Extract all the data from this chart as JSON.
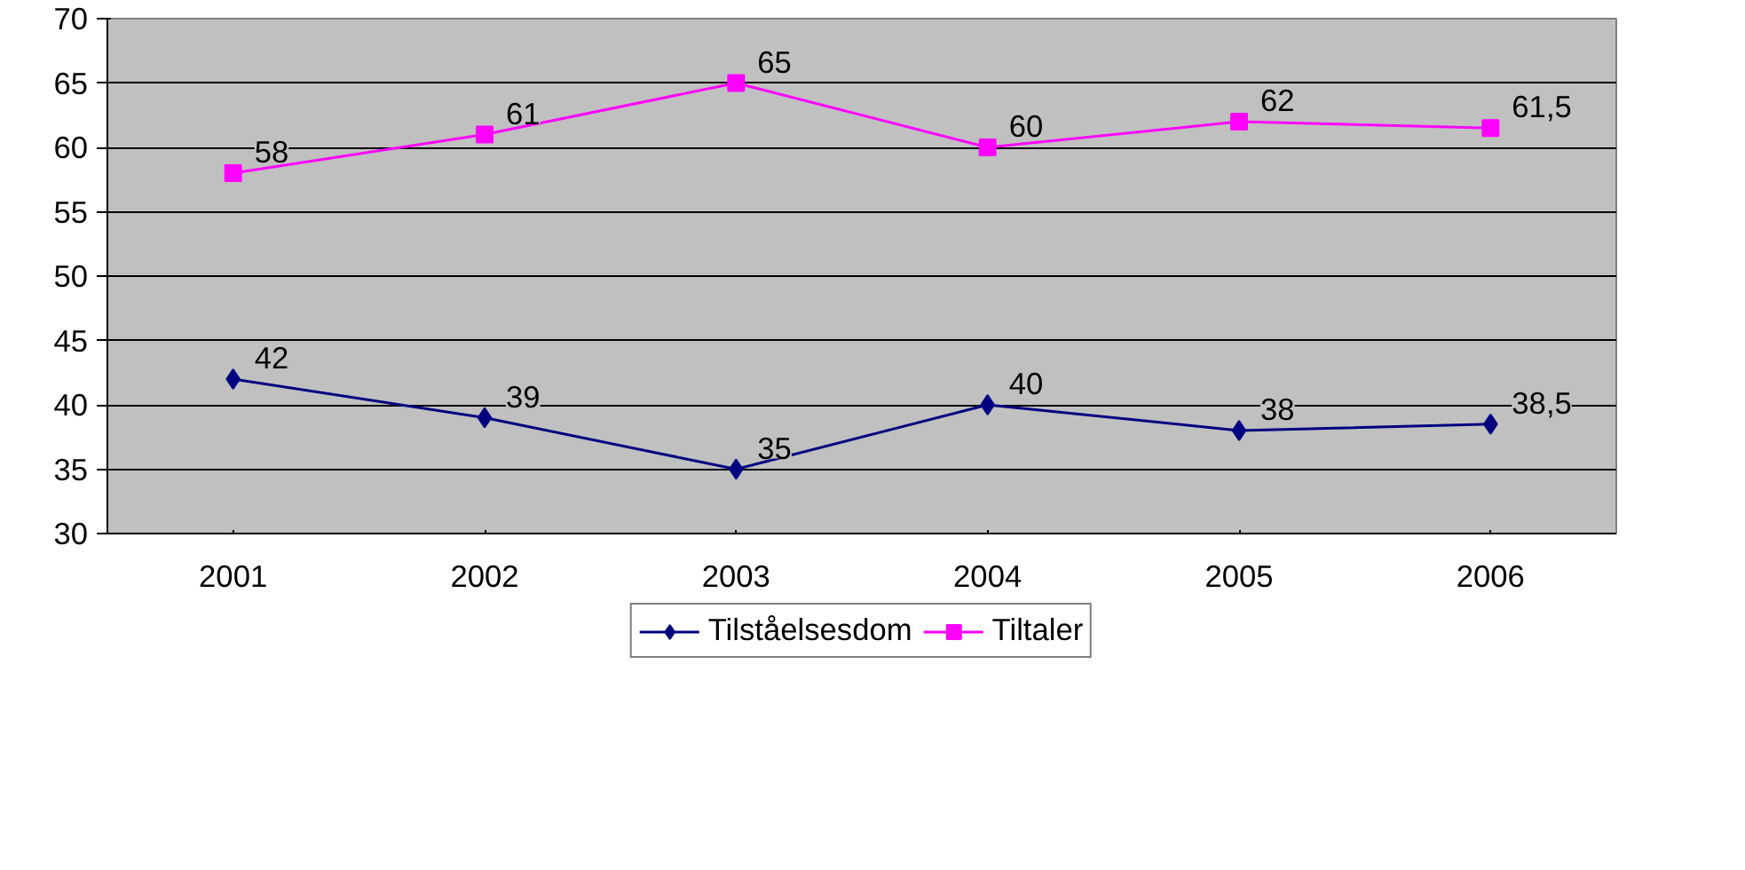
{
  "chart_data": {
    "type": "line",
    "categories": [
      "2001",
      "2002",
      "2003",
      "2004",
      "2005",
      "2006"
    ],
    "series": [
      {
        "name": "Tilståelsesdom",
        "color": "#000080",
        "marker": "diamond",
        "values": [
          42,
          39,
          35,
          40,
          38,
          38.5
        ],
        "value_labels": [
          "42",
          "39",
          "35",
          "40",
          "38",
          "38,5"
        ]
      },
      {
        "name": "Tiltaler",
        "color": "#ff00ff",
        "marker": "square",
        "values": [
          58,
          61,
          65,
          60,
          62,
          61.5
        ],
        "value_labels": [
          "58",
          "61",
          "65",
          "60",
          "62",
          "61,5"
        ]
      }
    ],
    "ylim": [
      30,
      70
    ],
    "yticks": [
      30,
      35,
      40,
      45,
      50,
      55,
      60,
      65,
      70
    ],
    "grid": "y",
    "legend": "bottom",
    "line_style": "solid"
  }
}
